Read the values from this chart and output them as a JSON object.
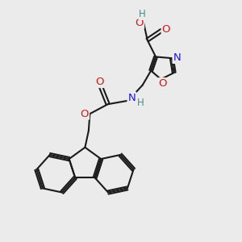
{
  "bg_color": "#ebebeb",
  "bond_color": "#1a1a1a",
  "bond_width": 1.5,
  "dbo": 0.06,
  "atom_colors": {
    "C": "#1a1a1a",
    "H": "#3a9090",
    "N": "#1a1acc",
    "O": "#cc1a1a"
  },
  "font_size": 8.5,
  "fig_size": [
    3.0,
    3.0
  ],
  "dpi": 100
}
